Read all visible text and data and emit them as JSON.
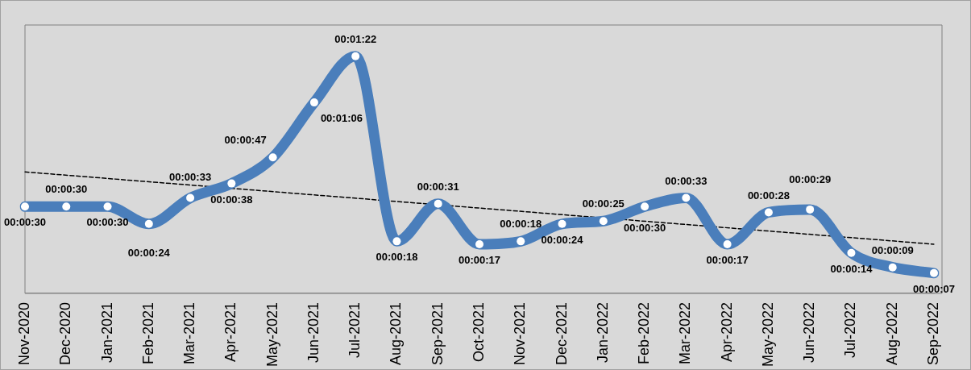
{
  "chart_data": {
    "type": "line",
    "categories": [
      "Nov-2020",
      "Dec-2020",
      "Jan-2021",
      "Feb-2021",
      "Mar-2021",
      "Apr-2021",
      "May-2021",
      "Jun-2021",
      "Jul-2021",
      "Aug-2021",
      "Sep-2021",
      "Oct-2021",
      "Nov-2021",
      "Dec-2021",
      "Jan-2022",
      "Feb-2022",
      "Mar-2022",
      "Apr-2022",
      "May-2022",
      "Jun-2022",
      "Jul-2022",
      "Aug-2022",
      "Sep-2022"
    ],
    "series": [
      {
        "type": "line",
        "color": "#4a7ebb",
        "marker": "circle",
        "line_style": "solid",
        "values": [
          30,
          30,
          30,
          24,
          33,
          38,
          47,
          66,
          82,
          18,
          31,
          17,
          18,
          24,
          25,
          30,
          33,
          17,
          28,
          29,
          14,
          9,
          7
        ],
        "value_labels": [
          "00:00:30",
          "00:00:30",
          "00:00:30",
          "00:00:24",
          "00:00:33",
          "00:00:38",
          "00:00:47",
          "00:01:06",
          "00:01:22",
          "00:00:18",
          "00:00:31",
          "00:00:17",
          "00:00:18",
          "00:00:24",
          "00:00:25",
          "00:00:30",
          "00:00:33",
          "00:00:17",
          "00:00:28",
          "00:00:29",
          "00:00:14",
          "00:00:09",
          "00:00:07"
        ]
      },
      {
        "type": "line",
        "color": "#000000",
        "marker": "none",
        "line_style": "dashed",
        "x": [
          "Nov-2020",
          "Sep-2022"
        ],
        "values": [
          42,
          17
        ]
      }
    ],
    "tick_labels": "x",
    "grid": false,
    "legend": false
  }
}
